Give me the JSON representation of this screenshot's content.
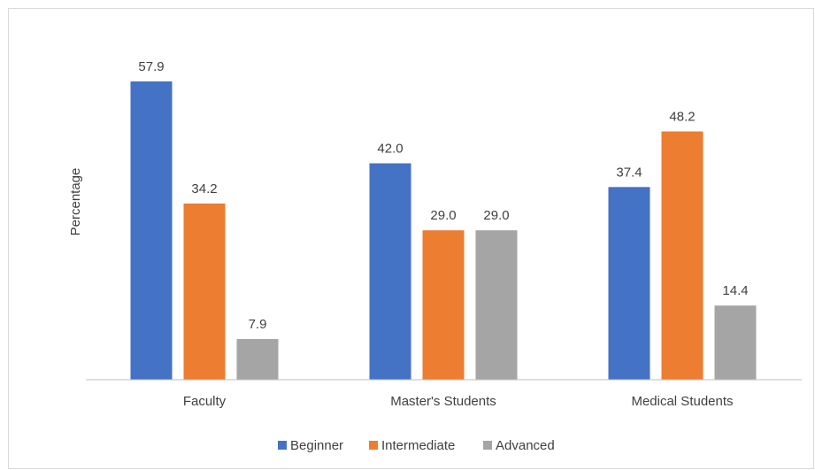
{
  "chart_data": {
    "type": "bar",
    "title": "",
    "xlabel": "",
    "ylabel": "Percentage",
    "categories": [
      "Faculty",
      "Master's Students",
      "Medical Students"
    ],
    "series": [
      {
        "name": "Beginner",
        "color": "#4472c4",
        "values": [
          57.9,
          42.0,
          37.4
        ],
        "labels": [
          "57.9",
          "42.0",
          "37.4"
        ]
      },
      {
        "name": "Intermediate",
        "color": "#ed7d31",
        "values": [
          34.2,
          29.0,
          48.2
        ],
        "labels": [
          "34.2",
          "29.0",
          "48.2"
        ]
      },
      {
        "name": "Advanced",
        "color": "#a5a5a5",
        "values": [
          7.9,
          29.0,
          14.4
        ],
        "labels": [
          "7.9",
          "29.0",
          "14.4"
        ]
      }
    ],
    "ylim": [
      0,
      60
    ],
    "grid": false,
    "legend_position": "bottom",
    "axis_color": "#bfbfbf"
  }
}
